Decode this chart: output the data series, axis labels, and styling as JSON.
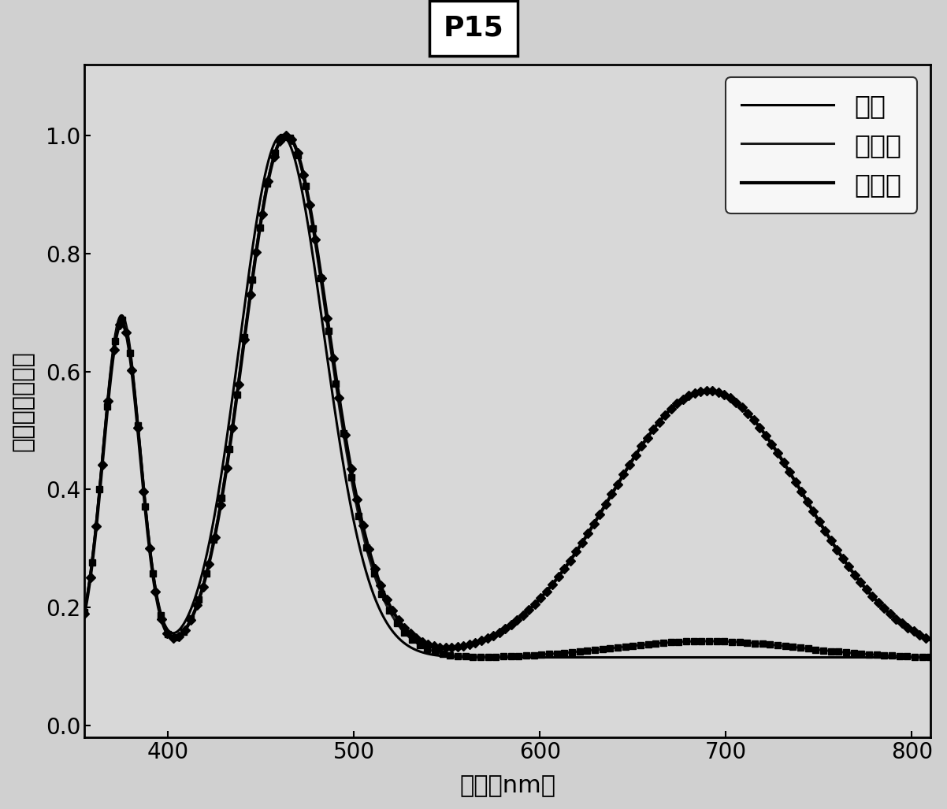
{
  "title": "P15",
  "xlabel": "波长（nm）",
  "ylabel": "归一化的吸收值",
  "xlim": [
    355,
    810
  ],
  "ylim": [
    -0.02,
    1.12
  ],
  "xticks": [
    400,
    500,
    600,
    700,
    800
  ],
  "yticks": [
    0.0,
    0.2,
    0.4,
    0.6,
    0.8,
    1.0
  ],
  "legend_labels": [
    "甲苯",
    "苯甲醜",
    "苯甲腹"
  ],
  "background_color": "#e8e8e8",
  "line_color": "#000000",
  "title_fontsize": 26,
  "label_fontsize": 22,
  "tick_fontsize": 20,
  "legend_fontsize": 24
}
